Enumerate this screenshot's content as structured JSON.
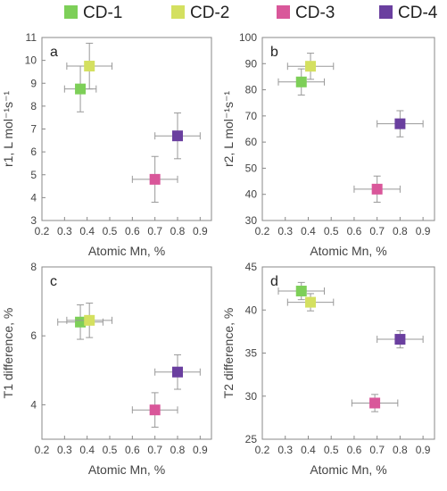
{
  "legend": [
    {
      "name": "CD-1",
      "color": "#7dcf58"
    },
    {
      "name": "CD-2",
      "color": "#d4e060"
    },
    {
      "name": "CD-3",
      "color": "#d9579a"
    },
    {
      "name": "CD-4",
      "color": "#6a3f9f"
    }
  ],
  "chart_data": [
    {
      "type": "scatter",
      "panel": "a",
      "xlabel": "Atomic Mn, %",
      "ylabel": "r1, L mol⁻¹s⁻¹",
      "xlim": [
        0.2,
        0.95
      ],
      "ylim": [
        3,
        11
      ],
      "xticks": [
        0.2,
        0.3,
        0.4,
        0.5,
        0.6,
        0.7,
        0.8,
        0.9
      ],
      "yticks": [
        3,
        4,
        5,
        6,
        7,
        8,
        9,
        10,
        11
      ],
      "points": [
        {
          "series": "CD-1",
          "x": 0.37,
          "y": 8.75,
          "xerr": 0.07,
          "yerr": 1.0
        },
        {
          "series": "CD-2",
          "x": 0.41,
          "y": 9.75,
          "xerr": 0.1,
          "yerr": 1.0
        },
        {
          "series": "CD-3",
          "x": 0.7,
          "y": 4.8,
          "xerr": 0.1,
          "yerr": 1.0
        },
        {
          "series": "CD-4",
          "x": 0.8,
          "y": 6.7,
          "xerr": 0.1,
          "yerr": 1.0
        }
      ]
    },
    {
      "type": "scatter",
      "panel": "b",
      "xlabel": "Atomic Mn, %",
      "ylabel": "r2, L mol⁻¹s⁻¹",
      "xlim": [
        0.2,
        0.95
      ],
      "ylim": [
        30,
        100
      ],
      "xticks": [
        0.2,
        0.3,
        0.4,
        0.5,
        0.6,
        0.7,
        0.8,
        0.9
      ],
      "yticks": [
        30,
        40,
        50,
        60,
        70,
        80,
        90,
        100
      ],
      "points": [
        {
          "series": "CD-1",
          "x": 0.37,
          "y": 83,
          "xerr": 0.1,
          "yerr": 5
        },
        {
          "series": "CD-2",
          "x": 0.41,
          "y": 89,
          "xerr": 0.1,
          "yerr": 5
        },
        {
          "series": "CD-3",
          "x": 0.7,
          "y": 42,
          "xerr": 0.1,
          "yerr": 5
        },
        {
          "series": "CD-4",
          "x": 0.8,
          "y": 67,
          "xerr": 0.1,
          "yerr": 5
        }
      ]
    },
    {
      "type": "scatter",
      "panel": "c",
      "xlabel": "Atomic Mn, %",
      "ylabel": "T1 difference, %",
      "xlim": [
        0.2,
        0.95
      ],
      "ylim": [
        3,
        8
      ],
      "xticks": [
        0.2,
        0.3,
        0.4,
        0.5,
        0.6,
        0.7,
        0.8,
        0.9
      ],
      "yticks": [
        4,
        6,
        8
      ],
      "points": [
        {
          "series": "CD-1",
          "x": 0.37,
          "y": 6.4,
          "xerr": 0.1,
          "yerr": 0.5
        },
        {
          "series": "CD-2",
          "x": 0.41,
          "y": 6.45,
          "xerr": 0.1,
          "yerr": 0.5
        },
        {
          "series": "CD-3",
          "x": 0.7,
          "y": 3.85,
          "xerr": 0.1,
          "yerr": 0.5
        },
        {
          "series": "CD-4",
          "x": 0.8,
          "y": 4.95,
          "xerr": 0.1,
          "yerr": 0.5
        }
      ]
    },
    {
      "type": "scatter",
      "panel": "d",
      "xlabel": "Atomic Mn, %",
      "ylabel": "T2 difference, %",
      "xlim": [
        0.2,
        0.95
      ],
      "ylim": [
        25,
        45
      ],
      "xticks": [
        0.2,
        0.3,
        0.4,
        0.5,
        0.6,
        0.7,
        0.8,
        0.9
      ],
      "yticks": [
        25,
        30,
        35,
        40,
        45
      ],
      "points": [
        {
          "series": "CD-1",
          "x": 0.37,
          "y": 42.2,
          "xerr": 0.1,
          "yerr": 1.0
        },
        {
          "series": "CD-2",
          "x": 0.41,
          "y": 40.9,
          "xerr": 0.1,
          "yerr": 1.0
        },
        {
          "series": "CD-3",
          "x": 0.69,
          "y": 29.2,
          "xerr": 0.1,
          "yerr": 1.0
        },
        {
          "series": "CD-4",
          "x": 0.8,
          "y": 36.6,
          "xerr": 0.1,
          "yerr": 1.0
        }
      ]
    }
  ]
}
